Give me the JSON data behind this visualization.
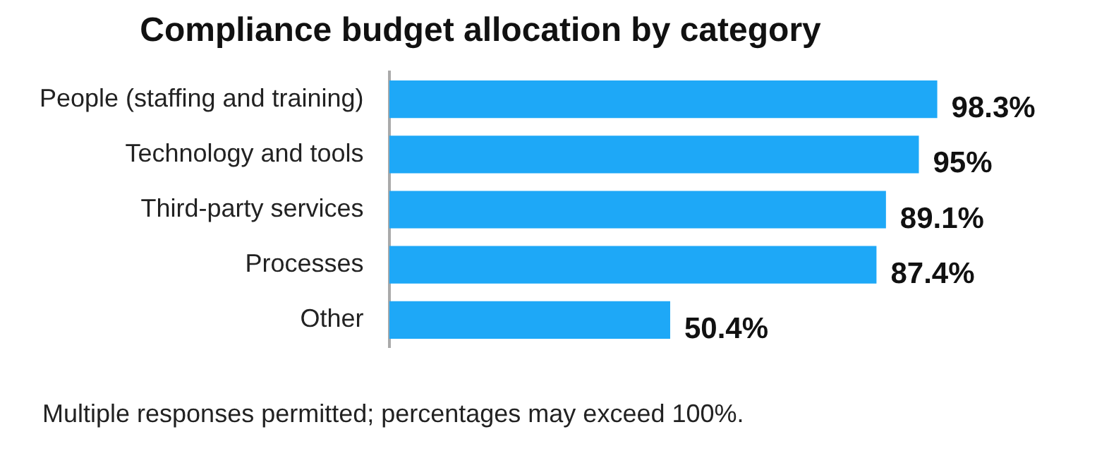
{
  "chart_data": {
    "type": "bar",
    "orientation": "horizontal",
    "title": "Compliance budget allocation by category",
    "categories": [
      "People (staffing and training)",
      "Technology and tools",
      "Third-party services",
      "Processes",
      "Other"
    ],
    "values": [
      98.3,
      95,
      89.1,
      87.4,
      50.4
    ],
    "value_labels": [
      "98.3%",
      "95%",
      "89.1%",
      "87.4%",
      "50.4%"
    ],
    "color": "#1ea8f7",
    "legend": false,
    "tick_labels": "y",
    "annotations": [
      "Multiple responses permitted; percentages may exceed 100%."
    ]
  }
}
